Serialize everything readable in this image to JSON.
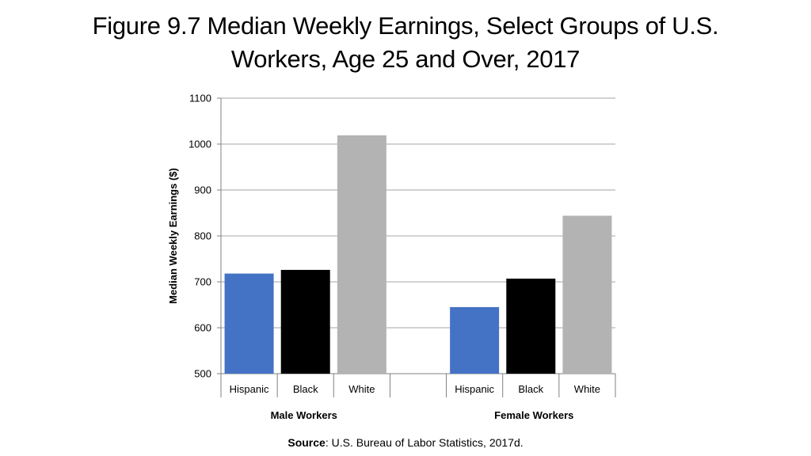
{
  "title_line1": "Figure 9.7 Median Weekly Earnings, Select Groups of U.S.",
  "title_line2": "Workers, Age 25 and Over, 2017",
  "source_label": "Source",
  "source_text": ": U.S. Bureau of Labor Statistics, 2017d.",
  "colors": {
    "hispanic": "#4472C4",
    "black": "#000000",
    "white": "#B3B3B3",
    "grid": "#A6A6A6",
    "axis": "#808080"
  },
  "chart_data": {
    "type": "bar",
    "title": "Figure 9.7 Median Weekly Earnings, Select Groups of U.S. Workers, Age 25 and Over, 2017",
    "ylabel": "Median Weekly Earnings ($)",
    "xlabel": "",
    "ylim": [
      500,
      1100
    ],
    "yticks": [
      500,
      600,
      700,
      800,
      900,
      1000,
      1100
    ],
    "grid": true,
    "groups": [
      {
        "label": "Male Workers",
        "categories": [
          "Hispanic",
          "Black",
          "White"
        ],
        "values": [
          718,
          726,
          1019
        ]
      },
      {
        "label": "Female Workers",
        "categories": [
          "Hispanic",
          "Black",
          "White"
        ],
        "values": [
          645,
          707,
          844
        ]
      }
    ]
  }
}
